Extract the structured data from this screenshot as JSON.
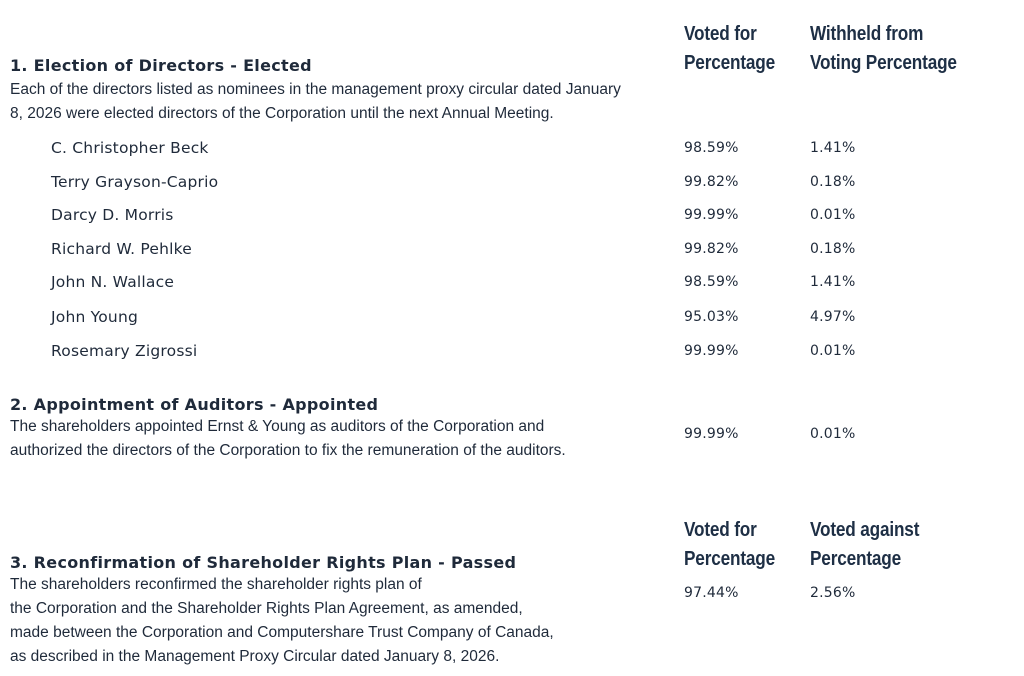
{
  "headers_1": {
    "col1": [
      "Voted for",
      "Percentage"
    ],
    "col2": [
      "Withheld from",
      "Voting Percentage"
    ]
  },
  "section1": {
    "title": "1. Election of Directors - Elected",
    "desc": [
      "Each of the directors listed as nominees in the management proxy circular dated January",
      "8, 2026 were elected directors of the Corporation until the next Annual Meeting."
    ],
    "rows": [
      {
        "name": "C. Christopher Beck",
        "for": "98.59%",
        "withheld": "1.41%"
      },
      {
        "name": "Terry Grayson-Caprio",
        "for": "99.82%",
        "withheld": "0.18%"
      },
      {
        "name": "Darcy D. Morris",
        "for": "99.99%",
        "withheld": "0.01%"
      },
      {
        "name": "Richard W. Pehlke",
        "for": "99.82%",
        "withheld": "0.18%"
      },
      {
        "name": "John N. Wallace",
        "for": "98.59%",
        "withheld": "1.41%"
      },
      {
        "name": "John Young",
        "for": "95.03%",
        "withheld": "4.97%"
      },
      {
        "name": "Rosemary Zigrossi",
        "for": "99.99%",
        "withheld": "0.01%"
      }
    ]
  },
  "section2": {
    "title": "2. Appointment of Auditors  -  Appointed",
    "desc": [
      "The shareholders appointed Ernst & Young as auditors of the Corporation and",
      "authorized the directors of the Corporation to fix the remuneration of the auditors."
    ],
    "for": "99.99%",
    "withheld": "0.01%"
  },
  "headers_3": {
    "col1": [
      "Voted for",
      "Percentage"
    ],
    "col2": [
      "Voted against",
      "Percentage"
    ]
  },
  "section3": {
    "title": "3. Reconfirmation of Shareholder Rights Plan - Passed",
    "desc": [
      "The shareholders reconfirmed the shareholder rights plan of",
      "the Corporation and the Shareholder Rights Plan Agreement, as amended,",
      "made between the Corporation and Computershare Trust Company of Canada,",
      "as described in the Management Proxy Circular dated January 8, 2026."
    ],
    "for": "97.44%",
    "against": "2.56%"
  }
}
